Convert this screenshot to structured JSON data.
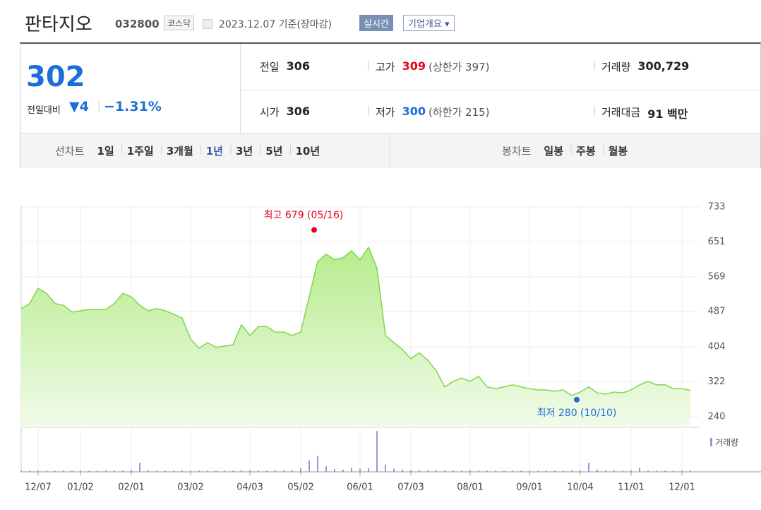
{
  "header": {
    "name": "판타지오",
    "code": "032800",
    "market": "코스닥",
    "date": "2023.12.07 기준(장마감)",
    "buttons": [
      "실시간",
      "기업개요"
    ]
  },
  "quote": {
    "price": "302",
    "change_label": "전일대비",
    "change": "4",
    "change_rate": "−1.31%",
    "fields": [
      {
        "label": "전일",
        "value": "306"
      },
      {
        "label": "고가",
        "value": "309",
        "extra": "(상한가 397)",
        "color": "#e8001c"
      },
      {
        "label": "거래량",
        "value": "300,729"
      },
      {
        "label": "시가",
        "value": "306"
      },
      {
        "label": "저가",
        "value": "300",
        "extra": "(하한가 215)",
        "color": "#1a6ed8"
      },
      {
        "label": "거래대금",
        "value": "91 백만"
      }
    ]
  },
  "tabs": {
    "line_label": "선차트",
    "line": [
      "1일",
      "1주일",
      "3개월",
      "1년",
      "3년",
      "5년",
      "10년"
    ],
    "selected": "1년",
    "candle_label": "봉차트",
    "candle": [
      "일봉",
      "주봉",
      "월봉"
    ]
  },
  "chart_data": {
    "type": "line",
    "categories": [
      null,
      null,
      "12/07",
      null,
      null,
      null,
      null,
      "01/02",
      null,
      null,
      null,
      null,
      null,
      "02/01",
      null,
      null,
      null,
      null,
      null,
      null,
      "03/02",
      null,
      null,
      null,
      null,
      null,
      null,
      "04/03",
      null,
      null,
      null,
      null,
      null,
      "05/02",
      null,
      null,
      null,
      null,
      null,
      null,
      "06/01",
      null,
      null,
      null,
      null,
      null,
      "07/03",
      null,
      null,
      null,
      null,
      null,
      null,
      "08/01",
      null,
      null,
      null,
      null,
      null,
      null,
      "09/01",
      null,
      null,
      null,
      null,
      null,
      "10/04",
      null,
      null,
      null,
      null,
      null,
      "11/01",
      null,
      null,
      null,
      null,
      null,
      "12/01",
      null
    ],
    "values": [
      494,
      506,
      542,
      530,
      506,
      502,
      486,
      489,
      492,
      492,
      492,
      506,
      530,
      522,
      502,
      489,
      494,
      489,
      481,
      472,
      423,
      401,
      414,
      403,
      406,
      409,
      456,
      431,
      452,
      452,
      439,
      439,
      431,
      439,
      522,
      605,
      622,
      609,
      614,
      630,
      609,
      638,
      589,
      431,
      414,
      398,
      376,
      390,
      373,
      348,
      310,
      323,
      331,
      323,
      335,
      310,
      306,
      310,
      315,
      310,
      306,
      303,
      303,
      300,
      303,
      290,
      298,
      310,
      296,
      293,
      298,
      296,
      303,
      315,
      323,
      315,
      315,
      306,
      306,
      302
    ],
    "color": "#7ed64c",
    "volume": {
      "name": "거래량",
      "color": "#a393d6",
      "values": [
        300000,
        250000,
        280000,
        260000,
        240000,
        300000,
        260000,
        250000,
        240000,
        230000,
        260000,
        280000,
        300000,
        400000,
        2000000,
        300000,
        260000,
        250000,
        240000,
        260000,
        300000,
        280000,
        250000,
        240000,
        260000,
        250000,
        350000,
        300000,
        280000,
        260000,
        300000,
        280000,
        320000,
        800000,
        2500000,
        3500000,
        1200000,
        600000,
        500000,
        900000,
        700000,
        800000,
        9000000,
        1600000,
        700000,
        500000,
        400000,
        350000,
        300000,
        320000,
        300000,
        280000,
        260000,
        300000,
        280000,
        260000,
        250000,
        240000,
        260000,
        250000,
        240000,
        230000,
        250000,
        260000,
        240000,
        280000,
        300000,
        2000000,
        500000,
        300000,
        280000,
        260000,
        300000,
        900000,
        280000,
        260000,
        250000,
        240000,
        260000,
        300000
      ]
    },
    "ylim": [
      215,
      738
    ],
    "yticks": [
      240,
      322,
      404,
      487,
      569,
      651,
      733
    ],
    "grid": true,
    "annotations": [
      {
        "text": "최고 679 (05/16)",
        "value": 679,
        "color": "#e8001c"
      },
      {
        "text": "최저 280 (10/10)",
        "value": 280,
        "color": "#1a6ed8"
      }
    ]
  }
}
